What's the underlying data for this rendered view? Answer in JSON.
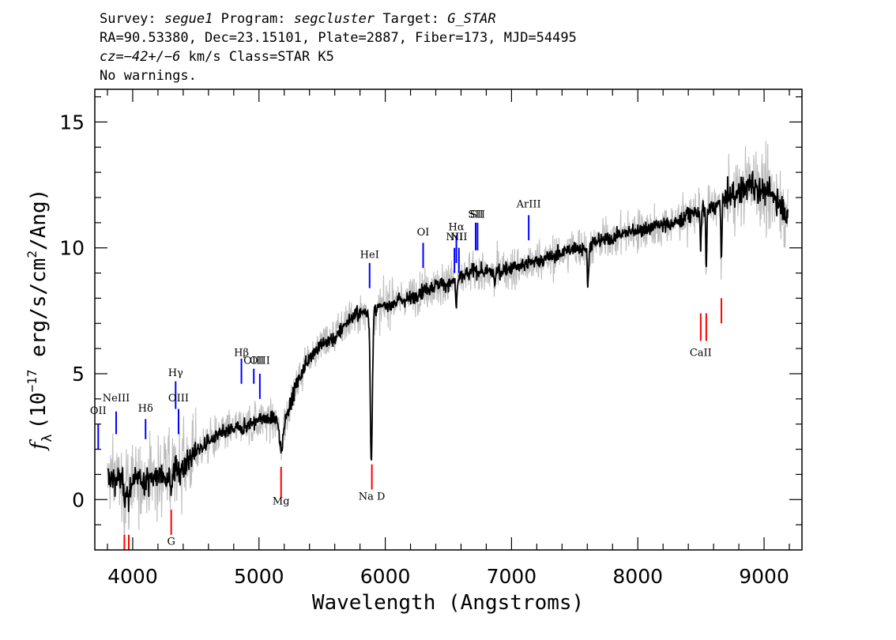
{
  "header": {
    "survey_label": "Survey:",
    "survey_value": "segue1",
    "program_label": "Program:",
    "program_value": "segcluster",
    "target_label": "Target:",
    "target_value": "G_STAR",
    "line2": "RA=90.53380, Dec=23.15101, Plate=2887, Fiber=173, MJD=54495",
    "cz_label": "cz",
    "cz_value": "=−42+/−6",
    "cz_unit": "km/s",
    "class_text": "Class=STAR K5",
    "line4": "No warnings."
  },
  "colors": {
    "spectrum": "#000000",
    "error": "#bdbdbd",
    "emission": "#0000ff",
    "absorption": "#ff0000"
  },
  "chart_data": {
    "type": "line",
    "xlabel": "Wavelength (Angstroms)",
    "ylabel": "f_λ (10^-17 erg/s/cm²/Ang)",
    "ylabel_parts": {
      "f": "f",
      "lambda_sub": "λ",
      "open": "(10",
      "exp": "−17",
      "mid": " erg/s/cm",
      "exp2": "2",
      "close": "/Ang)"
    },
    "xlim": [
      3700,
      9300
    ],
    "ylim": [
      -2,
      16.3
    ],
    "x_ticks": [
      4000,
      5000,
      6000,
      7000,
      8000,
      9000
    ],
    "x_tick_labels": [
      "4000",
      "5000",
      "6000",
      "7000",
      "8000",
      "9000"
    ],
    "y_ticks": [
      0,
      5,
      10,
      15
    ],
    "y_tick_labels": [
      "0",
      "5",
      "10",
      "15"
    ],
    "continuum": [
      [
        3800,
        0.9
      ],
      [
        3900,
        0.8
      ],
      [
        4000,
        0.7
      ],
      [
        4100,
        0.8
      ],
      [
        4200,
        0.9
      ],
      [
        4300,
        1.1
      ],
      [
        4400,
        1.3
      ],
      [
        4500,
        1.9
      ],
      [
        4600,
        2.3
      ],
      [
        4700,
        2.6
      ],
      [
        4800,
        2.8
      ],
      [
        4900,
        2.9
      ],
      [
        5000,
        3.2
      ],
      [
        5100,
        3.2
      ],
      [
        5200,
        3.1
      ],
      [
        5300,
        4.6
      ],
      [
        5400,
        5.7
      ],
      [
        5500,
        6.2
      ],
      [
        5600,
        6.4
      ],
      [
        5700,
        7.1
      ],
      [
        5800,
        7.4
      ],
      [
        5900,
        7.5
      ],
      [
        6000,
        7.7
      ],
      [
        6100,
        7.9
      ],
      [
        6200,
        8.0
      ],
      [
        6300,
        8.3
      ],
      [
        6400,
        8.5
      ],
      [
        6500,
        8.6
      ],
      [
        6600,
        8.8
      ],
      [
        6700,
        9.1
      ],
      [
        6800,
        9.0
      ],
      [
        6900,
        9.1
      ],
      [
        7000,
        9.2
      ],
      [
        7100,
        9.3
      ],
      [
        7200,
        9.5
      ],
      [
        7300,
        9.6
      ],
      [
        7400,
        9.8
      ],
      [
        7500,
        10.0
      ],
      [
        7600,
        10.0
      ],
      [
        7700,
        10.3
      ],
      [
        7800,
        10.4
      ],
      [
        7900,
        10.6
      ],
      [
        8000,
        10.7
      ],
      [
        8100,
        10.8
      ],
      [
        8200,
        10.9
      ],
      [
        8300,
        11.0
      ],
      [
        8400,
        11.3
      ],
      [
        8500,
        11.5
      ],
      [
        8600,
        11.6
      ],
      [
        8700,
        12.0
      ],
      [
        8800,
        12.2
      ],
      [
        8900,
        12.6
      ],
      [
        9000,
        12.2
      ],
      [
        9100,
        12.0
      ],
      [
        9190,
        11.2
      ]
    ],
    "absorption_features": [
      {
        "wave": 5890,
        "depth": 5.9,
        "width": 12
      },
      {
        "wave": 5175,
        "depth": 1.2,
        "width": 18
      },
      {
        "wave": 4305,
        "depth": 0.6,
        "width": 12
      },
      {
        "wave": 8498,
        "depth": 1.6,
        "width": 6
      },
      {
        "wave": 8542,
        "depth": 2.4,
        "width": 6
      },
      {
        "wave": 8662,
        "depth": 2.4,
        "width": 6
      },
      {
        "wave": 7605,
        "depth": 1.5,
        "width": 8
      },
      {
        "wave": 6563,
        "depth": 1.0,
        "width": 8
      },
      {
        "wave": 6867,
        "depth": 0.5,
        "width": 8
      },
      {
        "wave": 3968,
        "depth": 0.9,
        "width": 10
      },
      {
        "wave": 3934,
        "depth": 0.9,
        "width": 10
      }
    ],
    "emission_lines": [
      {
        "label": "OII",
        "wave": 3727,
        "y0": 2.0,
        "y1": 3.0,
        "label_y": 3.4
      },
      {
        "label": "NeIII",
        "wave": 3869,
        "y0": 2.6,
        "y1": 3.5,
        "label_y": 3.9
      },
      {
        "label": "Hδ",
        "wave": 4102,
        "y0": 2.4,
        "y1": 3.2,
        "label_y": 3.5
      },
      {
        "label": "Hγ",
        "wave": 4340,
        "y0": 3.6,
        "y1": 4.7,
        "label_y": 4.9
      },
      {
        "label": "OIII",
        "wave": 4363,
        "y0": 2.6,
        "y1": 3.6,
        "label_y": 3.9
      },
      {
        "label": "Hβ",
        "wave": 4861,
        "y0": 4.6,
        "y1": 5.6,
        "label_y": 5.7
      },
      {
        "label": "OIII",
        "wave": 4959,
        "y0": 4.6,
        "y1": 5.2,
        "label_y": 5.4
      },
      {
        "label": "OIII",
        "wave": 5007,
        "y0": 4.0,
        "y1": 5.0,
        "label_y": 5.4
      },
      {
        "label": "HeI",
        "wave": 5876,
        "y0": 8.4,
        "y1": 9.4,
        "label_y": 9.6
      },
      {
        "label": "OI",
        "wave": 6300,
        "y0": 9.2,
        "y1": 10.2,
        "label_y": 10.5
      },
      {
        "label": "NII",
        "wave": 6548,
        "y0": 9.0,
        "y1": 10.0,
        "label_y": 10.3
      },
      {
        "label": "Hα",
        "wave": 6563,
        "y0": 9.4,
        "y1": 10.5,
        "label_y": 10.7
      },
      {
        "label": "NII",
        "wave": 6583,
        "y0": 9.0,
        "y1": 10.0,
        "label_y": 10.3
      },
      {
        "label": "SII",
        "wave": 6716,
        "y0": 9.9,
        "y1": 11.0,
        "label_y": 11.2
      },
      {
        "label": "SII",
        "wave": 6731,
        "y0": 9.9,
        "y1": 11.0,
        "label_y": 11.2
      },
      {
        "label": "ArIII",
        "wave": 7136,
        "y0": 10.3,
        "y1": 11.3,
        "label_y": 11.6
      }
    ],
    "absorption_lines": [
      {
        "label": "",
        "wave": 3934,
        "y0": -2.0,
        "y1": -1.4,
        "label_y": -2.6
      },
      {
        "label": "",
        "wave": 3969,
        "y0": -2.0,
        "y1": -1.4,
        "label_y": -2.6
      },
      {
        "label": "G",
        "wave": 4305,
        "y0": -1.4,
        "y1": -0.4,
        "label_y": -1.8
      },
      {
        "label": "Mg",
        "wave": 5175,
        "y0": 0.1,
        "y1": 1.3,
        "label_y": -0.2
      },
      {
        "label": "Na D",
        "wave": 5894,
        "y0": 0.4,
        "y1": 1.4,
        "label_y": 0.0
      },
      {
        "label": "CaII",
        "wave": 8498,
        "y0": 6.3,
        "y1": 7.4,
        "label_y": 5.7
      },
      {
        "label": "",
        "wave": 8542,
        "y0": 6.3,
        "y1": 7.4,
        "label_y": 5.7
      },
      {
        "label": "",
        "wave": 8662,
        "y0": 7.0,
        "y1": 8.0,
        "label_y": 5.7
      }
    ]
  }
}
